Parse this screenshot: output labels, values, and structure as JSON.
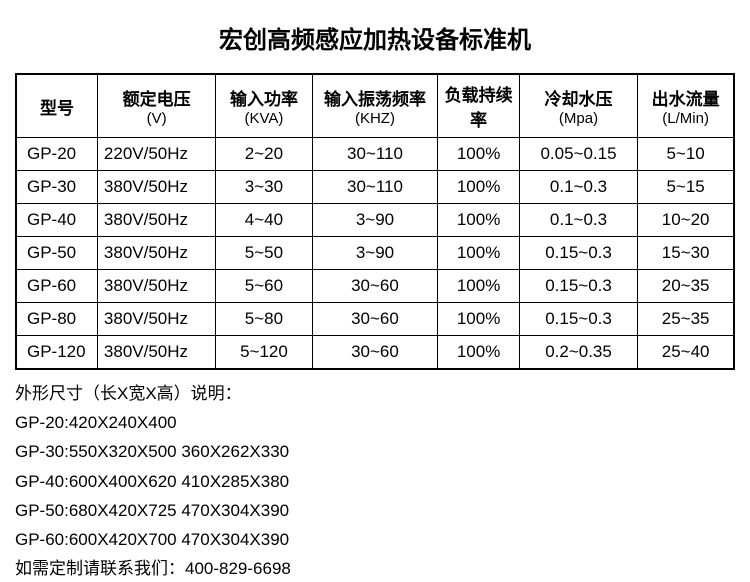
{
  "title": "宏创高频感应加热设备标准机",
  "columns": [
    {
      "label": "型号",
      "unit": ""
    },
    {
      "label": "额定电压",
      "unit": "(V)"
    },
    {
      "label": "输入功率",
      "unit": "(KVA)"
    },
    {
      "label": "输入振荡频率",
      "unit": "(KHZ)"
    },
    {
      "label": "负载持续率",
      "unit": ""
    },
    {
      "label": "冷却水压",
      "unit": "(Mpa)"
    },
    {
      "label": "出水流量",
      "unit": "(L/Min)"
    }
  ],
  "rows": [
    {
      "model": "GP-20",
      "voltage": "220V/50Hz",
      "power": "2~20",
      "freq": "30~110",
      "duty": "100%",
      "pressure": "0.05~0.15",
      "flow": "5~10"
    },
    {
      "model": "GP-30",
      "voltage": "380V/50Hz",
      "power": "3~30",
      "freq": "30~110",
      "duty": "100%",
      "pressure": "0.1~0.3",
      "flow": "5~15"
    },
    {
      "model": "GP-40",
      "voltage": "380V/50Hz",
      "power": "4~40",
      "freq": "3~90",
      "duty": "100%",
      "pressure": "0.1~0.3",
      "flow": "10~20"
    },
    {
      "model": "GP-50",
      "voltage": "380V/50Hz",
      "power": "5~50",
      "freq": "3~90",
      "duty": "100%",
      "pressure": "0.15~0.3",
      "flow": "15~30"
    },
    {
      "model": "GP-60",
      "voltage": "380V/50Hz",
      "power": "5~60",
      "freq": "30~60",
      "duty": "100%",
      "pressure": "0.15~0.3",
      "flow": "20~35"
    },
    {
      "model": "GP-80",
      "voltage": "380V/50Hz",
      "power": "5~80",
      "freq": "30~60",
      "duty": "100%",
      "pressure": "0.15~0.3",
      "flow": "25~35"
    },
    {
      "model": "GP-120",
      "voltage": "380V/50Hz",
      "power": "5~120",
      "freq": "30~60",
      "duty": "100%",
      "pressure": "0.2~0.35",
      "flow": "25~40"
    }
  ],
  "notes": {
    "header": "外形尺寸（长X宽X高）说明：",
    "lines": [
      "GP-20:420X240X400",
      "GP-30:550X320X500 360X262X330",
      "GP-40:600X400X620 410X285X380",
      "GP-50:680X420X725 470X304X390",
      "GP-60:600X420X700 470X304X390"
    ],
    "contact": "如需定制请联系我们：400-829-6698"
  }
}
